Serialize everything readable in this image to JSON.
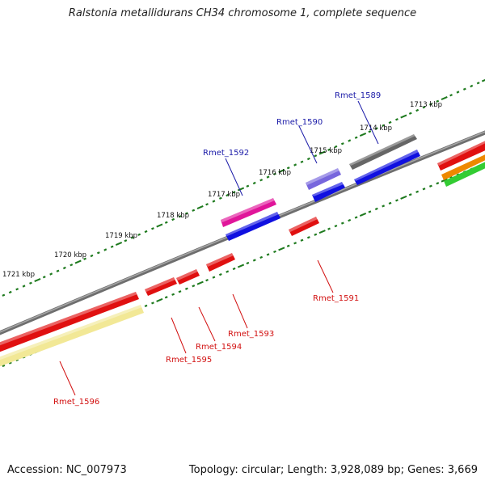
{
  "title": "Ralstonia metallidurans CH34 chromosome 1, complete sequence",
  "footer": {
    "accession": "Accession: NC_007973",
    "summary": "Topology: circular; Length: 3,928,089 bp; Genes: 3,669"
  },
  "colors": {
    "tick": "#1e7a1e",
    "backbone": "#7a7a7a",
    "forward_label": "#1a1aa8",
    "reverse_label": "#d21010",
    "red": "#e01010",
    "blue": "#1010e0",
    "magenta": "#e0159a",
    "lavender": "#7766dd",
    "gray": "#666666",
    "yellow": "#f2e896",
    "orange": "#ee8800",
    "green": "#33cc33"
  },
  "kbp_labels": [
    "1713 kbp",
    "1714 kbp",
    "1715 kbp",
    "1716 kbp",
    "1717 kbp",
    "1718 kbp",
    "1719 kbp",
    "1720 kbp",
    "1721 kbp"
  ],
  "gene_labels": {
    "forward": [
      "Rmet_1589",
      "Rmet_1590",
      "Rmet_1592"
    ],
    "reverse": [
      "Rmet_1591",
      "Rmet_1593",
      "Rmet_1594",
      "Rmet_1595",
      "Rmet_1596"
    ]
  }
}
